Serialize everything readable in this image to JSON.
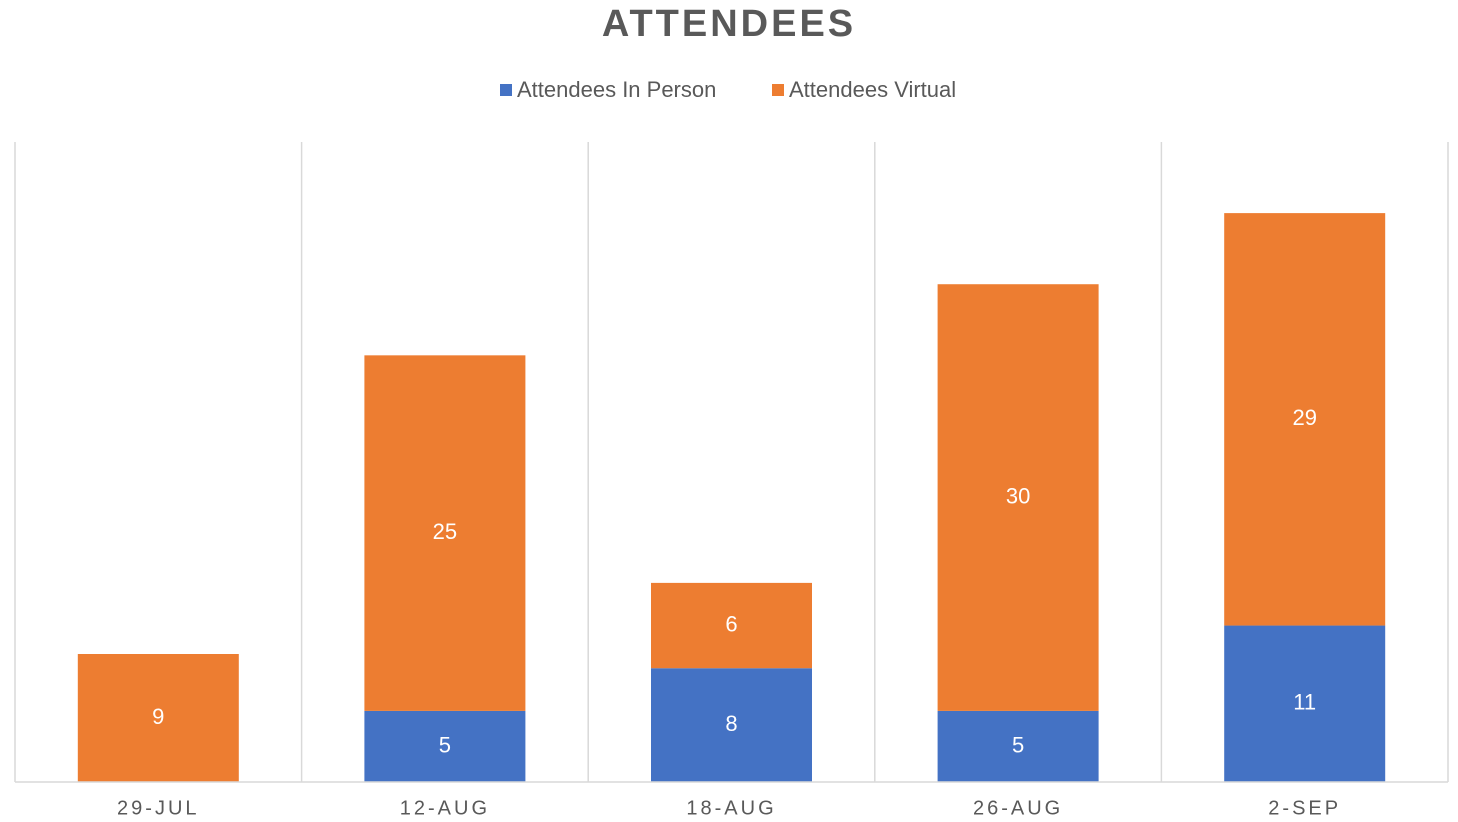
{
  "chart_data": {
    "type": "stacked_bar",
    "title": "ATTENDEES",
    "categories": [
      "29-JUL",
      "12-AUG",
      "18-AUG",
      "26-AUG",
      "2-SEP"
    ],
    "series": [
      {
        "name": "Attendees In Person",
        "color": "#4472c4",
        "values": [
          0,
          5,
          8,
          5,
          11
        ]
      },
      {
        "name": "Attendees Virtual",
        "color": "#ed7d31",
        "values": [
          9,
          25,
          6,
          30,
          29
        ]
      }
    ],
    "ylim": [
      0,
      45
    ],
    "legend": "top"
  }
}
